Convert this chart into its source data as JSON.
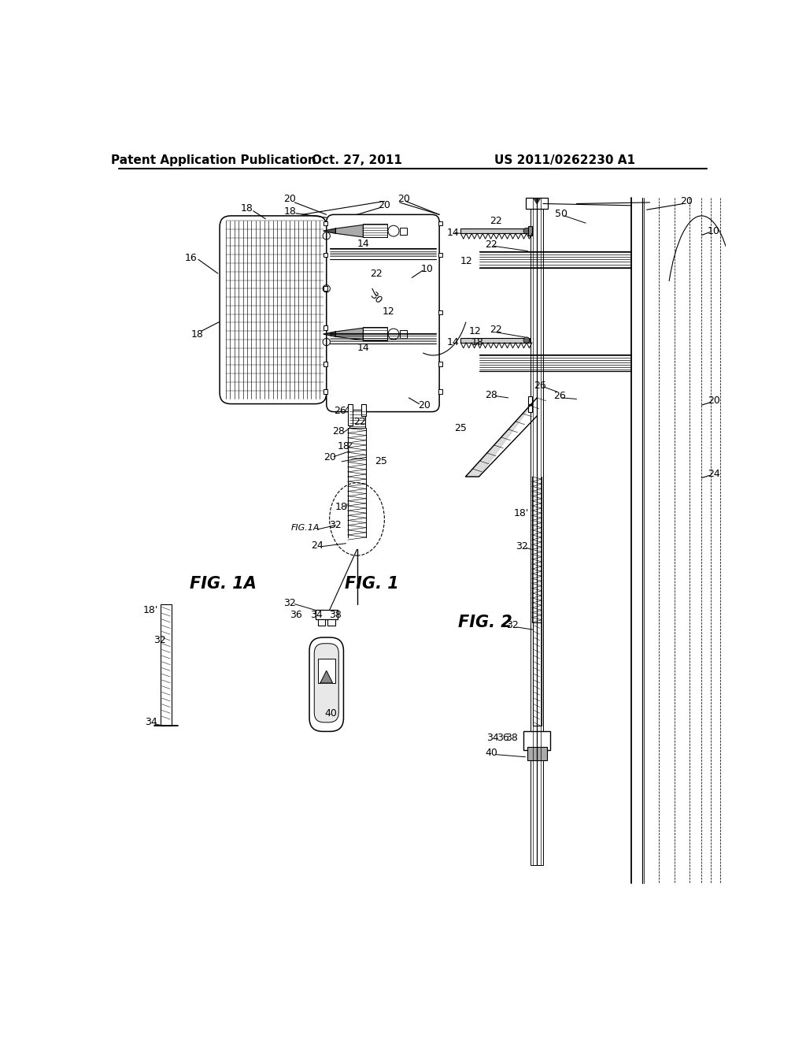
{
  "header_left": "Patent Application Publication",
  "header_center": "Oct. 27, 2011",
  "header_right": "US 2011/0262230 A1",
  "fig1_label": "FIG. 1",
  "fig1a_label": "FIG. 1A",
  "fig2_label": "FIG. 2",
  "background_color": "#ffffff",
  "line_color": "#000000"
}
